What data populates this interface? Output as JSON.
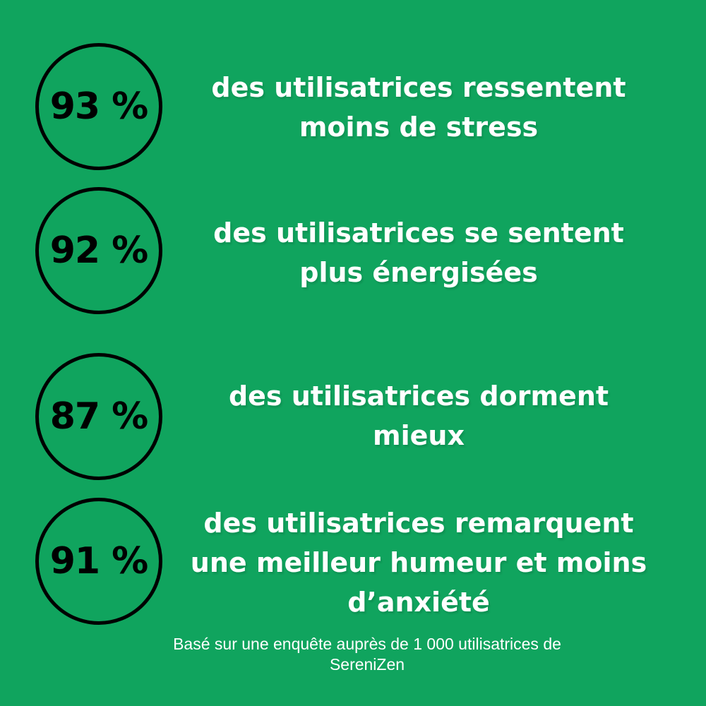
{
  "page": {
    "background_color": "#10A45E",
    "heading_text_color": "#FFFFFF",
    "circle_outline_color": "#000000",
    "percent_text_color": "#000000"
  },
  "stats": [
    {
      "percent": "93 %",
      "lines": [
        "des utilisatrices ressentent",
        "moins de stress"
      ]
    },
    {
      "percent": "92 %",
      "lines": [
        "des utilisatrices se sentent",
        "plus énergisées"
      ]
    },
    {
      "percent": "87 %",
      "lines": [
        "des utilisatrices dorment",
        "mieux"
      ]
    },
    {
      "percent": "91 %",
      "lines": [
        "des utilisatrices remarquent",
        "une meilleur humeur et moins",
        "d’anxiété"
      ]
    }
  ],
  "footer": {
    "lines": [
      "Basé sur une enquête auprès de 1 000 utilisatrices de",
      "SereniZen"
    ]
  }
}
